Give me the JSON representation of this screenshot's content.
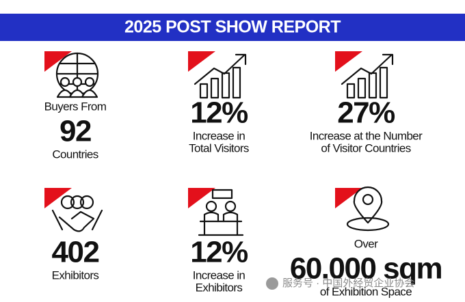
{
  "header": {
    "title": "2025 POST SHOW REPORT"
  },
  "items": [
    {
      "pre": [
        "Buyers From"
      ],
      "value": "92",
      "post": [
        "Countries"
      ]
    },
    {
      "value": "12%",
      "post": [
        "Increase in",
        "Total Visitors"
      ]
    },
    {
      "value": "27%",
      "post": [
        "Increase at the Number",
        "of Visitor Countries"
      ]
    },
    {
      "value": "402",
      "post": [
        "Exhibitors"
      ]
    },
    {
      "value": "12%",
      "post": [
        "Increase in",
        "Exhibitors"
      ]
    },
    {
      "pre": [
        "Over"
      ],
      "value": "60.000 sqm",
      "post": [
        "of Exhibition Space"
      ]
    }
  ],
  "watermark": "服务号 · 中国外经贸企业协会"
}
